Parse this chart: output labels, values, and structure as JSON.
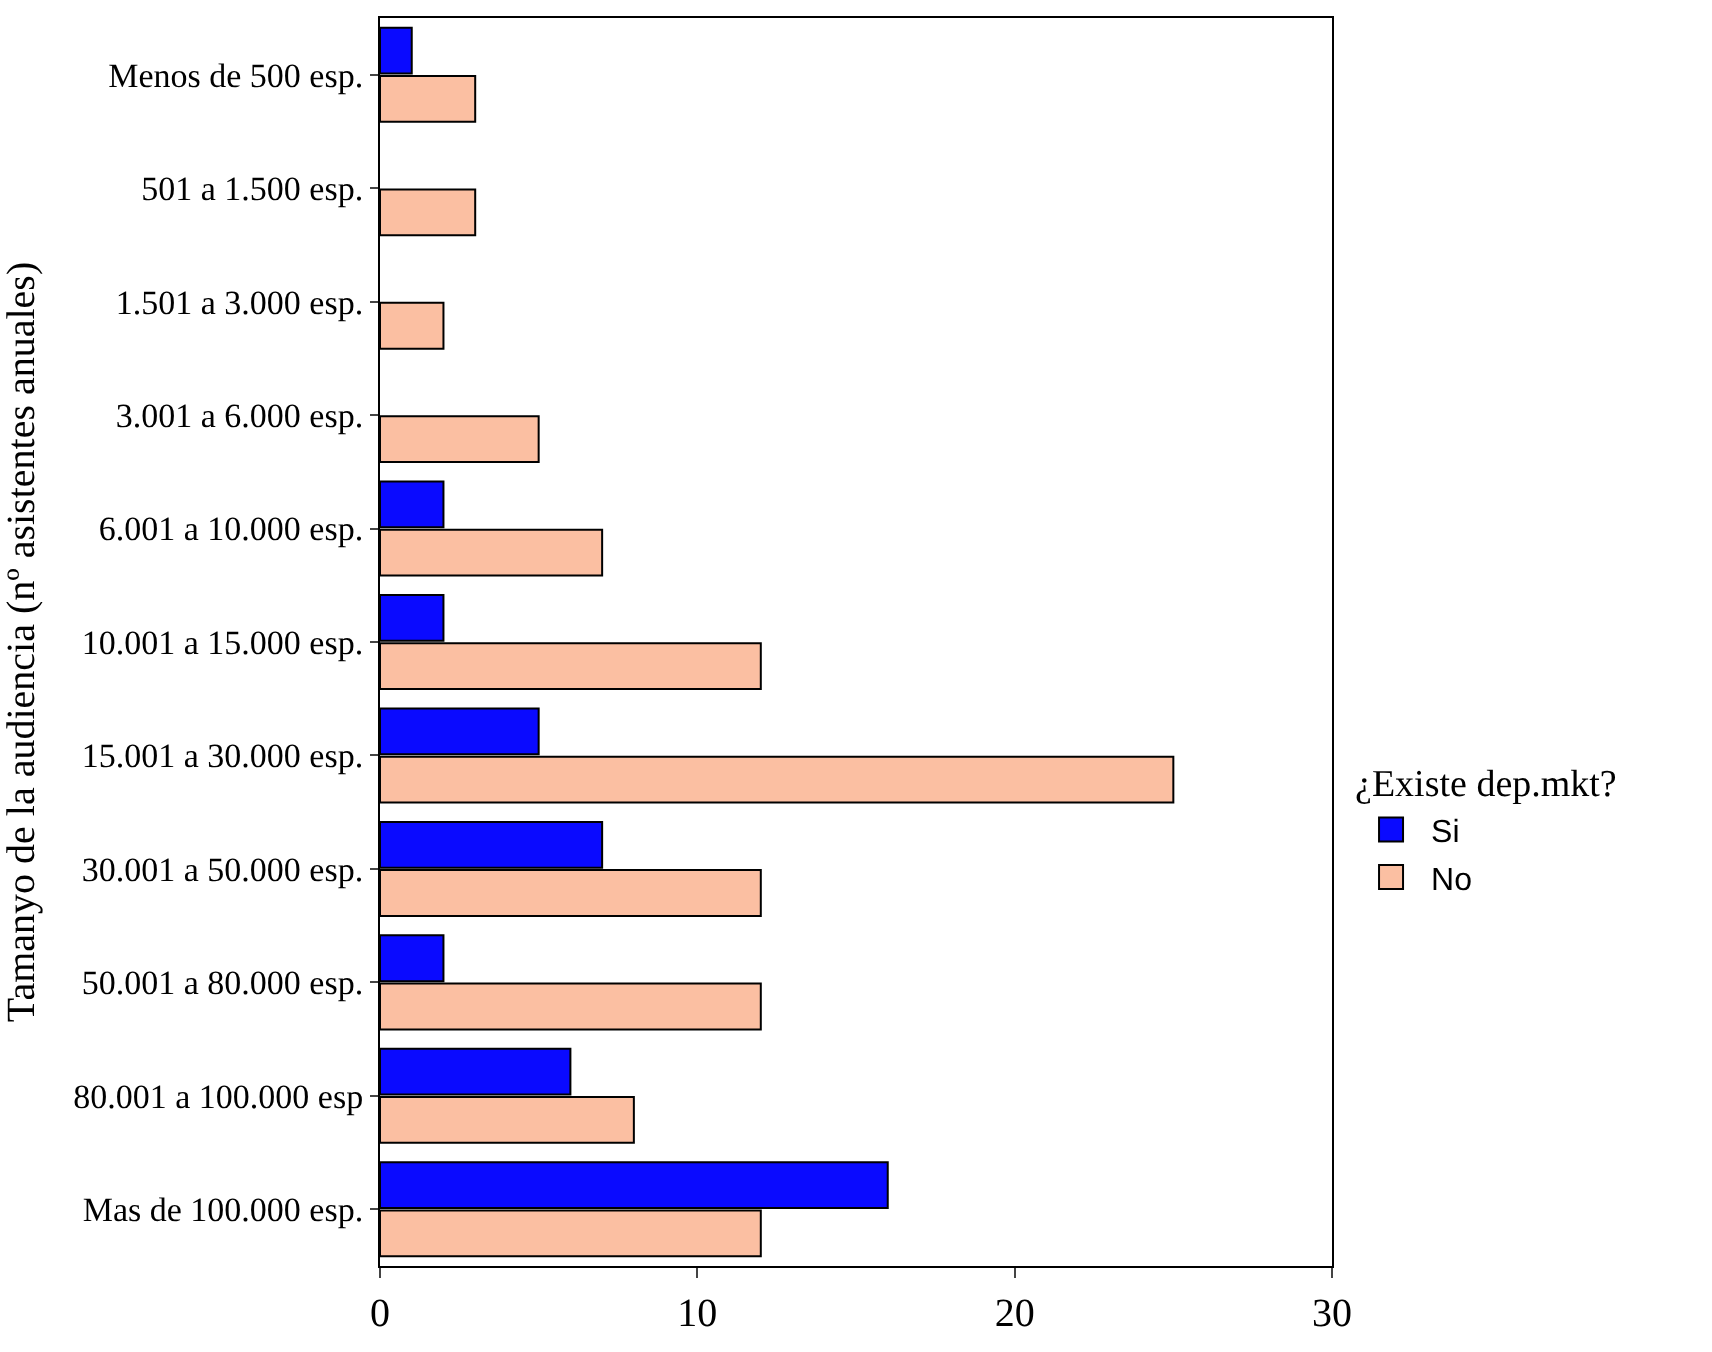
{
  "chart_data": {
    "type": "bar",
    "orientation": "horizontal",
    "ylabel": "Tamanyo de la audiencia (nº asistentes anuales)",
    "legend_title": "¿Existe dep.mkt?",
    "categories": [
      "Menos de 500 esp.",
      "501 a 1.500 esp.",
      "1.501 a 3.000 esp.",
      "3.001 a 6.000 esp.",
      "6.001 a 10.000 esp.",
      "10.001 a 15.000 esp.",
      "15.001 a 30.000 esp.",
      "30.001 a 50.000 esp.",
      "50.001 a 80.000 esp.",
      "80.001 a 100.000 esp",
      "Mas de 100.000 esp."
    ],
    "series": [
      {
        "name": "Si",
        "color": "#0a0aff",
        "values": [
          1,
          0,
          0,
          0,
          2,
          2,
          5,
          7,
          2,
          6,
          16
        ]
      },
      {
        "name": "No",
        "color": "#fbbfa2",
        "values": [
          3,
          3,
          2,
          5,
          7,
          12,
          25,
          12,
          12,
          8,
          12
        ]
      }
    ],
    "xlim": [
      0,
      30
    ],
    "xticks": [
      0,
      10,
      20,
      30
    ],
    "legend": "right"
  }
}
